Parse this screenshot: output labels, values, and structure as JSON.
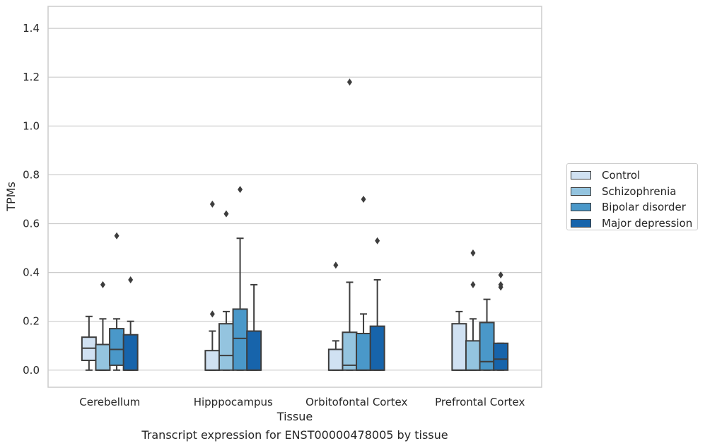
{
  "chart_data": {
    "type": "box",
    "ylabel": "TPMs",
    "xlabel": "Tissue",
    "caption": "Transcript expression for ENST00000478005 by tissue",
    "ylim": [
      -0.07,
      1.49
    ],
    "yticks": [
      0.0,
      0.2,
      0.4,
      0.6,
      0.8,
      1.0,
      1.2,
      1.4
    ],
    "ytick_labels": [
      "0.0",
      "0.2",
      "0.4",
      "0.6",
      "0.8",
      "1.0",
      "1.2",
      "1.4"
    ],
    "grid": true,
    "legend_position": "right",
    "categories": [
      "Cerebellum",
      "Hipppocampus",
      "Orbitofontal Cortex",
      "Prefrontal Cortex"
    ],
    "series": [
      {
        "name": "Control",
        "color": "#d0e1f2",
        "boxes": [
          {
            "low": 0.0,
            "q1": 0.04,
            "median": 0.09,
            "q3": 0.135,
            "high": 0.22,
            "outliers": []
          },
          {
            "low": 0.0,
            "q1": 0.0,
            "median": 0.0,
            "q3": 0.08,
            "high": 0.16,
            "outliers": [
              0.23,
              0.68
            ]
          },
          {
            "low": 0.0,
            "q1": 0.0,
            "median": 0.0,
            "q3": 0.085,
            "high": 0.12,
            "outliers": [
              0.43
            ]
          },
          {
            "low": 0.0,
            "q1": 0.0,
            "median": 0.0,
            "q3": 0.19,
            "high": 0.24,
            "outliers": []
          }
        ]
      },
      {
        "name": "Schizophrenia",
        "color": "#94c4df",
        "boxes": [
          {
            "low": 0.0,
            "q1": 0.0,
            "median": 0.0,
            "q3": 0.105,
            "high": 0.21,
            "outliers": [
              0.35
            ]
          },
          {
            "low": 0.0,
            "q1": 0.0,
            "median": 0.06,
            "q3": 0.19,
            "high": 0.24,
            "outliers": [
              0.64
            ]
          },
          {
            "low": 0.0,
            "q1": 0.0,
            "median": 0.02,
            "q3": 0.155,
            "high": 0.36,
            "outliers": [
              1.18
            ]
          },
          {
            "low": 0.0,
            "q1": 0.0,
            "median": 0.0,
            "q3": 0.12,
            "high": 0.21,
            "outliers": [
              0.35,
              0.48
            ]
          }
        ]
      },
      {
        "name": "Bipolar disorder",
        "color": "#4a98c9",
        "boxes": [
          {
            "low": 0.0,
            "q1": 0.02,
            "median": 0.085,
            "q3": 0.17,
            "high": 0.21,
            "outliers": [
              0.55
            ]
          },
          {
            "low": 0.0,
            "q1": 0.0,
            "median": 0.13,
            "q3": 0.25,
            "high": 0.54,
            "outliers": [
              0.74
            ]
          },
          {
            "low": 0.0,
            "q1": 0.0,
            "median": 0.0,
            "q3": 0.15,
            "high": 0.23,
            "outliers": [
              0.7
            ]
          },
          {
            "low": 0.0,
            "q1": 0.0,
            "median": 0.035,
            "q3": 0.195,
            "high": 0.29,
            "outliers": []
          }
        ]
      },
      {
        "name": "Major depression",
        "color": "#1764ab",
        "boxes": [
          {
            "low": 0.0,
            "q1": 0.0,
            "median": 0.0,
            "q3": 0.145,
            "high": 0.2,
            "outliers": [
              0.37
            ]
          },
          {
            "low": 0.0,
            "q1": 0.0,
            "median": 0.0,
            "q3": 0.16,
            "high": 0.35,
            "outliers": []
          },
          {
            "low": 0.0,
            "q1": 0.0,
            "median": 0.0,
            "q3": 0.18,
            "high": 0.37,
            "outliers": [
              0.53
            ]
          },
          {
            "low": 0.0,
            "q1": 0.0,
            "median": 0.045,
            "q3": 0.11,
            "high": 0.11,
            "outliers": [
              0.34,
              0.35,
              0.39
            ]
          }
        ]
      }
    ]
  }
}
